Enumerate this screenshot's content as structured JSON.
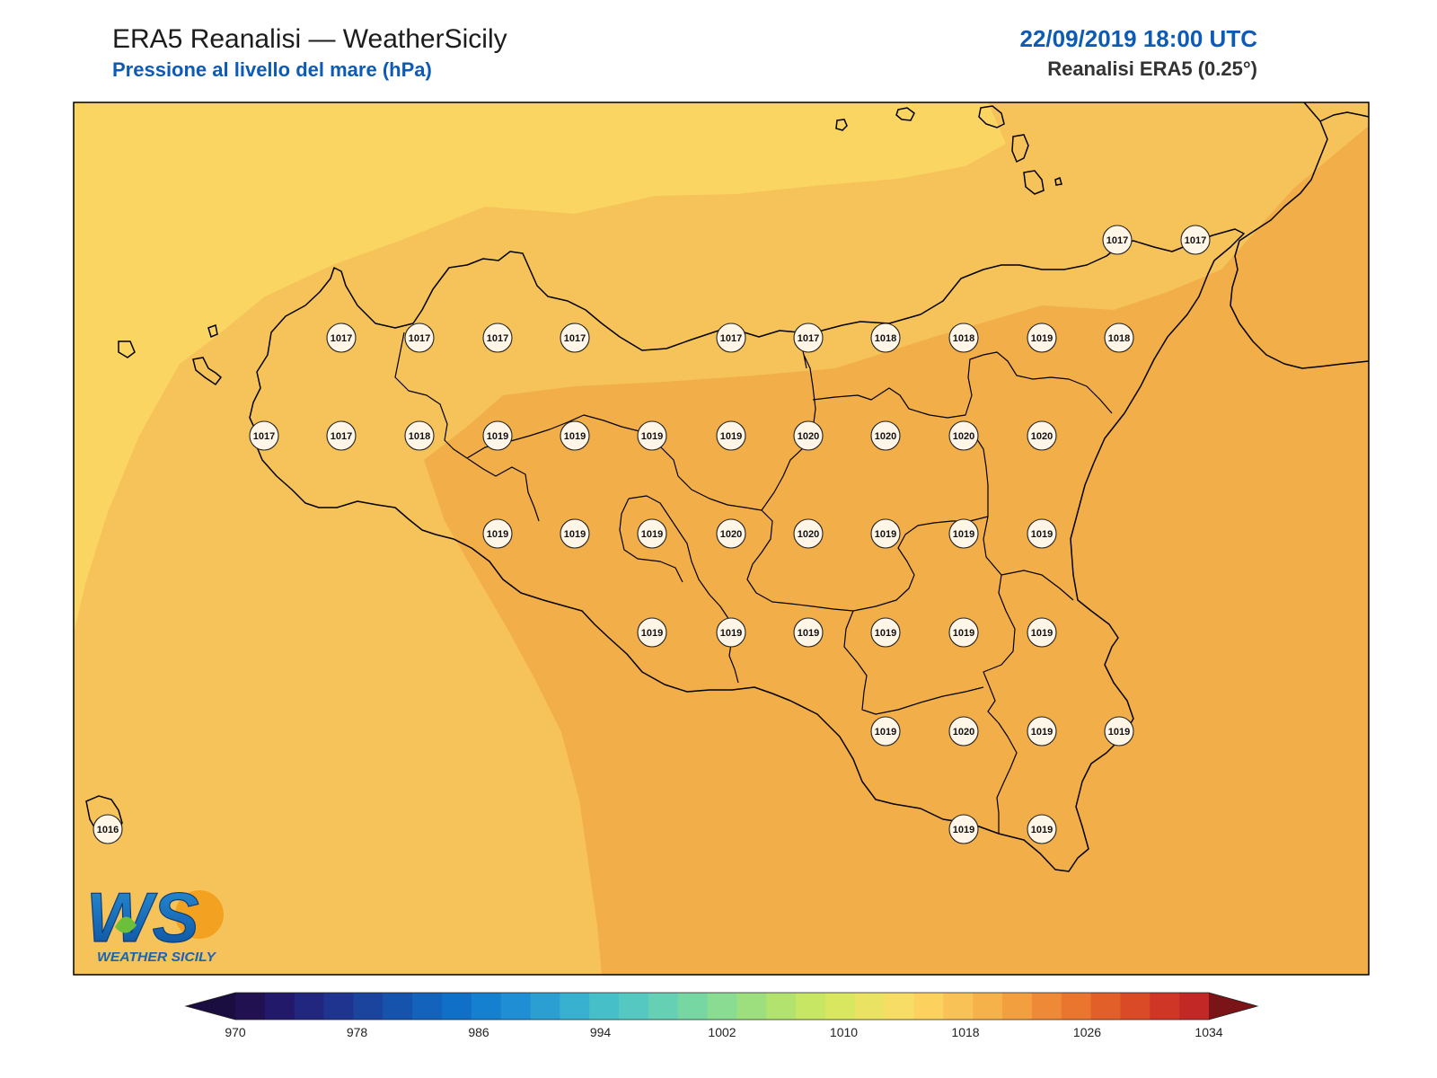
{
  "header": {
    "title": "ERA5 Reanalisi — WeatherSicily",
    "subtitle": "Pressione al livello del mare (hPa)",
    "datetime": "22/09/2019 18:00 UTC",
    "source": "Reanalisi ERA5 (0.25°)"
  },
  "logo": {
    "letters": "WS",
    "name": "WEATHER SICILY",
    "icon": "weather-sicily-logo"
  },
  "colors": {
    "band_1016": "#fad562",
    "band_1018": "#f6c35a",
    "band_1020": "#f2ae48",
    "coastline": "#000000",
    "title_blue": "#0d5bb5"
  },
  "colorbar": {
    "min": 970,
    "max": 1034,
    "step": 2,
    "tick_labels": [
      "970",
      "978",
      "986",
      "994",
      "1002",
      "1010",
      "1018",
      "1026",
      "1034"
    ],
    "colors": [
      "#221150",
      "#23196a",
      "#21277e",
      "#1e348f",
      "#1a449d",
      "#1653ad",
      "#1362bb",
      "#1070c7",
      "#157fd0",
      "#1f8ed4",
      "#2c9fd2",
      "#38b0cf",
      "#46bfc9",
      "#55c8c2",
      "#66d0b5",
      "#76d7a3",
      "#89dc91",
      "#9ddf7f",
      "#b2e36e",
      "#c6e664",
      "#d8e660",
      "#e9e262",
      "#f7dc66",
      "#fcd15e",
      "#f9c256",
      "#f6b24a",
      "#f29f40",
      "#ee8a37",
      "#e9752f",
      "#e35f2a",
      "#db4a26",
      "#d03625",
      "#c22826"
    ]
  },
  "stations": [
    {
      "value": "1017"
    },
    {
      "value": "1017"
    },
    {
      "value": "1017"
    },
    {
      "value": "1017"
    },
    {
      "value": "1017"
    },
    {
      "value": "1017"
    },
    {
      "value": "1017"
    },
    {
      "value": "1017"
    },
    {
      "value": "1018"
    },
    {
      "value": "1018"
    },
    {
      "value": "1019"
    },
    {
      "value": "1018"
    },
    {
      "value": "1017"
    },
    {
      "value": "1017"
    },
    {
      "value": "1018"
    },
    {
      "value": "1019"
    },
    {
      "value": "1019"
    },
    {
      "value": "1019"
    },
    {
      "value": "1019"
    },
    {
      "value": "1020"
    },
    {
      "value": "1020"
    },
    {
      "value": "1020"
    },
    {
      "value": "1020"
    },
    {
      "value": "1019"
    },
    {
      "value": "1019"
    },
    {
      "value": "1019"
    },
    {
      "value": "1020"
    },
    {
      "value": "1020"
    },
    {
      "value": "1019"
    },
    {
      "value": "1019"
    },
    {
      "value": "1019"
    },
    {
      "value": "1019"
    },
    {
      "value": "1019"
    },
    {
      "value": "1019"
    },
    {
      "value": "1019"
    },
    {
      "value": "1019"
    },
    {
      "value": "1019"
    },
    {
      "value": "1019"
    },
    {
      "value": "1020"
    },
    {
      "value": "1019"
    },
    {
      "value": "1019"
    },
    {
      "value": "1016"
    },
    {
      "value": "1019"
    },
    {
      "value": "1019"
    }
  ]
}
